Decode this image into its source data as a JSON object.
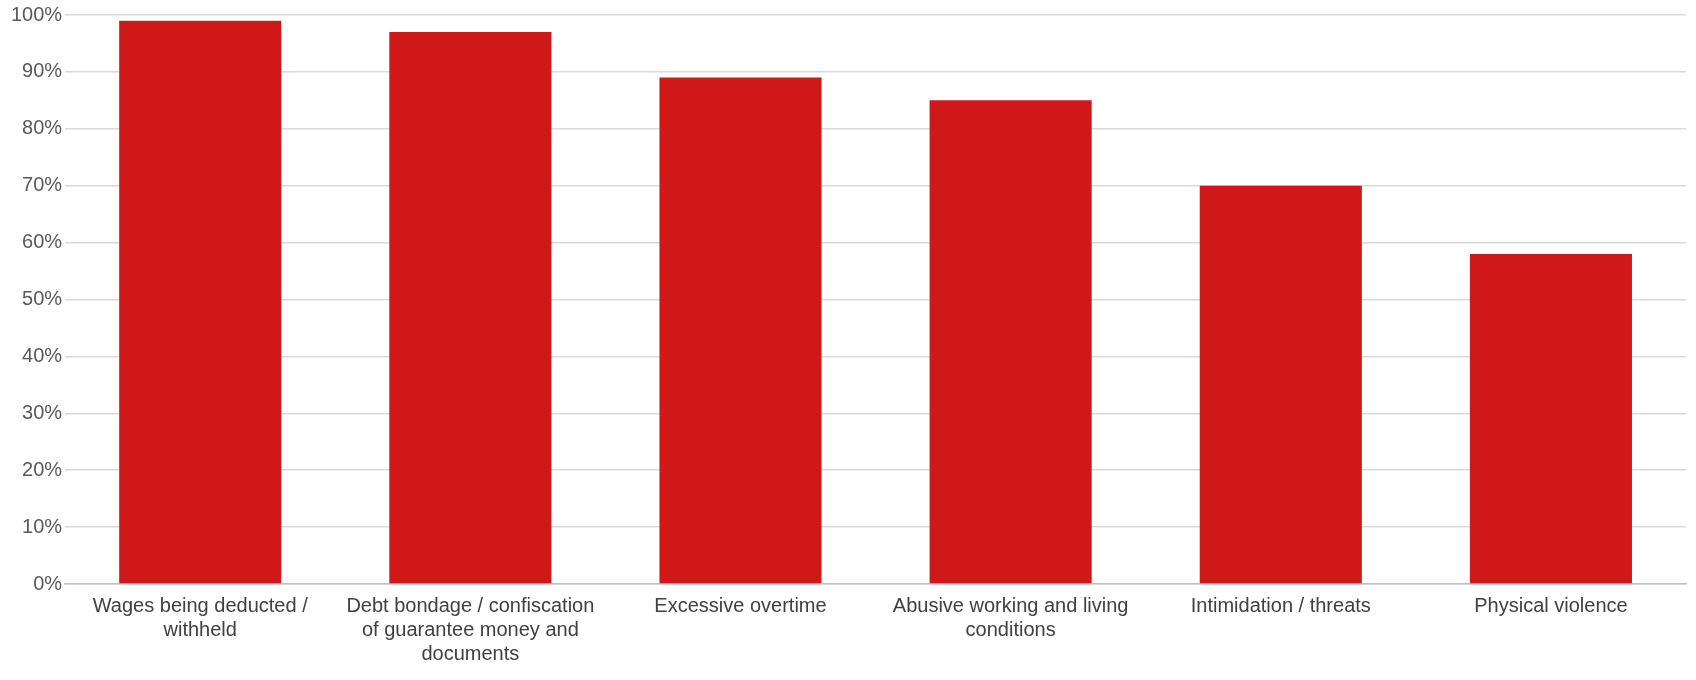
{
  "chart_data": {
    "type": "bar",
    "categories": [
      "Wages being deducted / withheld",
      "Debt bondage / confiscation of guarantee money and documents",
      "Excessive overtime",
      "Abusive working and living conditions",
      "Intimidation / threats",
      "Physical violence"
    ],
    "values": [
      99,
      97,
      89,
      85,
      70,
      58
    ],
    "color": "#d01818",
    "ylim": [
      0,
      100
    ],
    "yticks": [
      {
        "value": 0,
        "label": "0%"
      },
      {
        "value": 10,
        "label": "10%"
      },
      {
        "value": 20,
        "label": "20%"
      },
      {
        "value": 30,
        "label": "30%"
      },
      {
        "value": 40,
        "label": "40%"
      },
      {
        "value": 50,
        "label": "50%"
      },
      {
        "value": 60,
        "label": "60%"
      },
      {
        "value": 70,
        "label": "70%"
      },
      {
        "value": 80,
        "label": "80%"
      },
      {
        "value": 90,
        "label": "90%"
      },
      {
        "value": 100,
        "label": "100%"
      }
    ],
    "grid": "y",
    "legend": false
  }
}
